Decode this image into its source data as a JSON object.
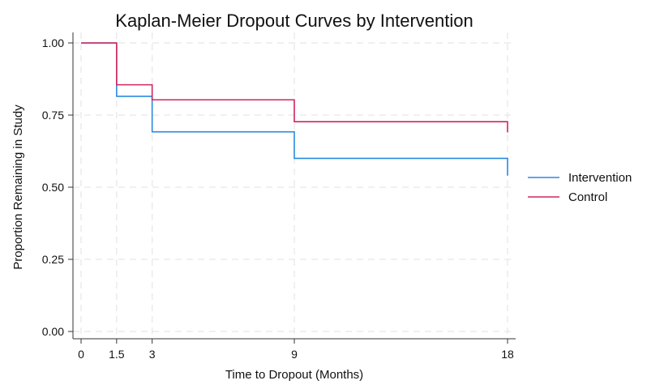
{
  "chart_data": {
    "type": "line",
    "title": "Kaplan-Meier Dropout Curves by Intervention",
    "xlabel": "Time to Dropout (Months)",
    "ylabel": "Proportion Remaining in Study",
    "xlim": [
      0,
      18
    ],
    "ylim": [
      0,
      1.0
    ],
    "xticks": [
      0,
      1.5,
      3,
      9,
      18
    ],
    "xtick_labels": [
      "0",
      "1.5",
      "3",
      "9",
      "18"
    ],
    "yticks": [
      0,
      0.25,
      0.5,
      0.75,
      1.0
    ],
    "ytick_labels": [
      "0.00",
      "0.25",
      "0.50",
      "0.75",
      "1.00"
    ],
    "grid": true,
    "legend_position": "right",
    "step": true,
    "series": [
      {
        "name": "Intervention",
        "color": "#2a8ae0",
        "x": [
          0,
          1.5,
          3,
          9,
          18,
          18
        ],
        "y": [
          1.0,
          0.815,
          0.692,
          0.6,
          0.6,
          0.54
        ]
      },
      {
        "name": "Control",
        "color": "#d2255c",
        "x": [
          0,
          1.5,
          3,
          9,
          18,
          18
        ],
        "y": [
          1.0,
          0.855,
          0.803,
          0.727,
          0.727,
          0.69
        ]
      }
    ]
  }
}
